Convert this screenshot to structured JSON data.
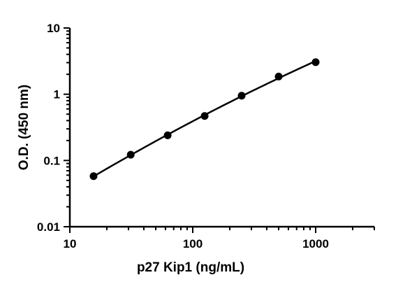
{
  "chart_data": {
    "type": "scatter",
    "title": "",
    "xlabel": "p27 Kip1 (ng/mL)",
    "ylabel": "O.D. (450 nm)",
    "x_scale": "log",
    "y_scale": "log",
    "xlim": [
      10,
      3000
    ],
    "ylim": [
      0.01,
      10
    ],
    "x_ticks": [
      {
        "value": 10,
        "label": "10"
      },
      {
        "value": 100,
        "label": "100"
      },
      {
        "value": 1000,
        "label": "1000"
      }
    ],
    "y_ticks": [
      {
        "value": 0.01,
        "label": "0.01"
      },
      {
        "value": 0.1,
        "label": "0.1"
      },
      {
        "value": 1,
        "label": "1"
      },
      {
        "value": 10,
        "label": "10"
      }
    ],
    "grid": false,
    "legend": "none",
    "series": [
      {
        "x": [
          15.6,
          31.3,
          62.5,
          125,
          250,
          500,
          1000
        ],
        "y": [
          0.058,
          0.122,
          0.24,
          0.47,
          0.95,
          1.85,
          3.05
        ],
        "marker": "circle",
        "color": "#000000",
        "fit_line": true
      }
    ]
  }
}
